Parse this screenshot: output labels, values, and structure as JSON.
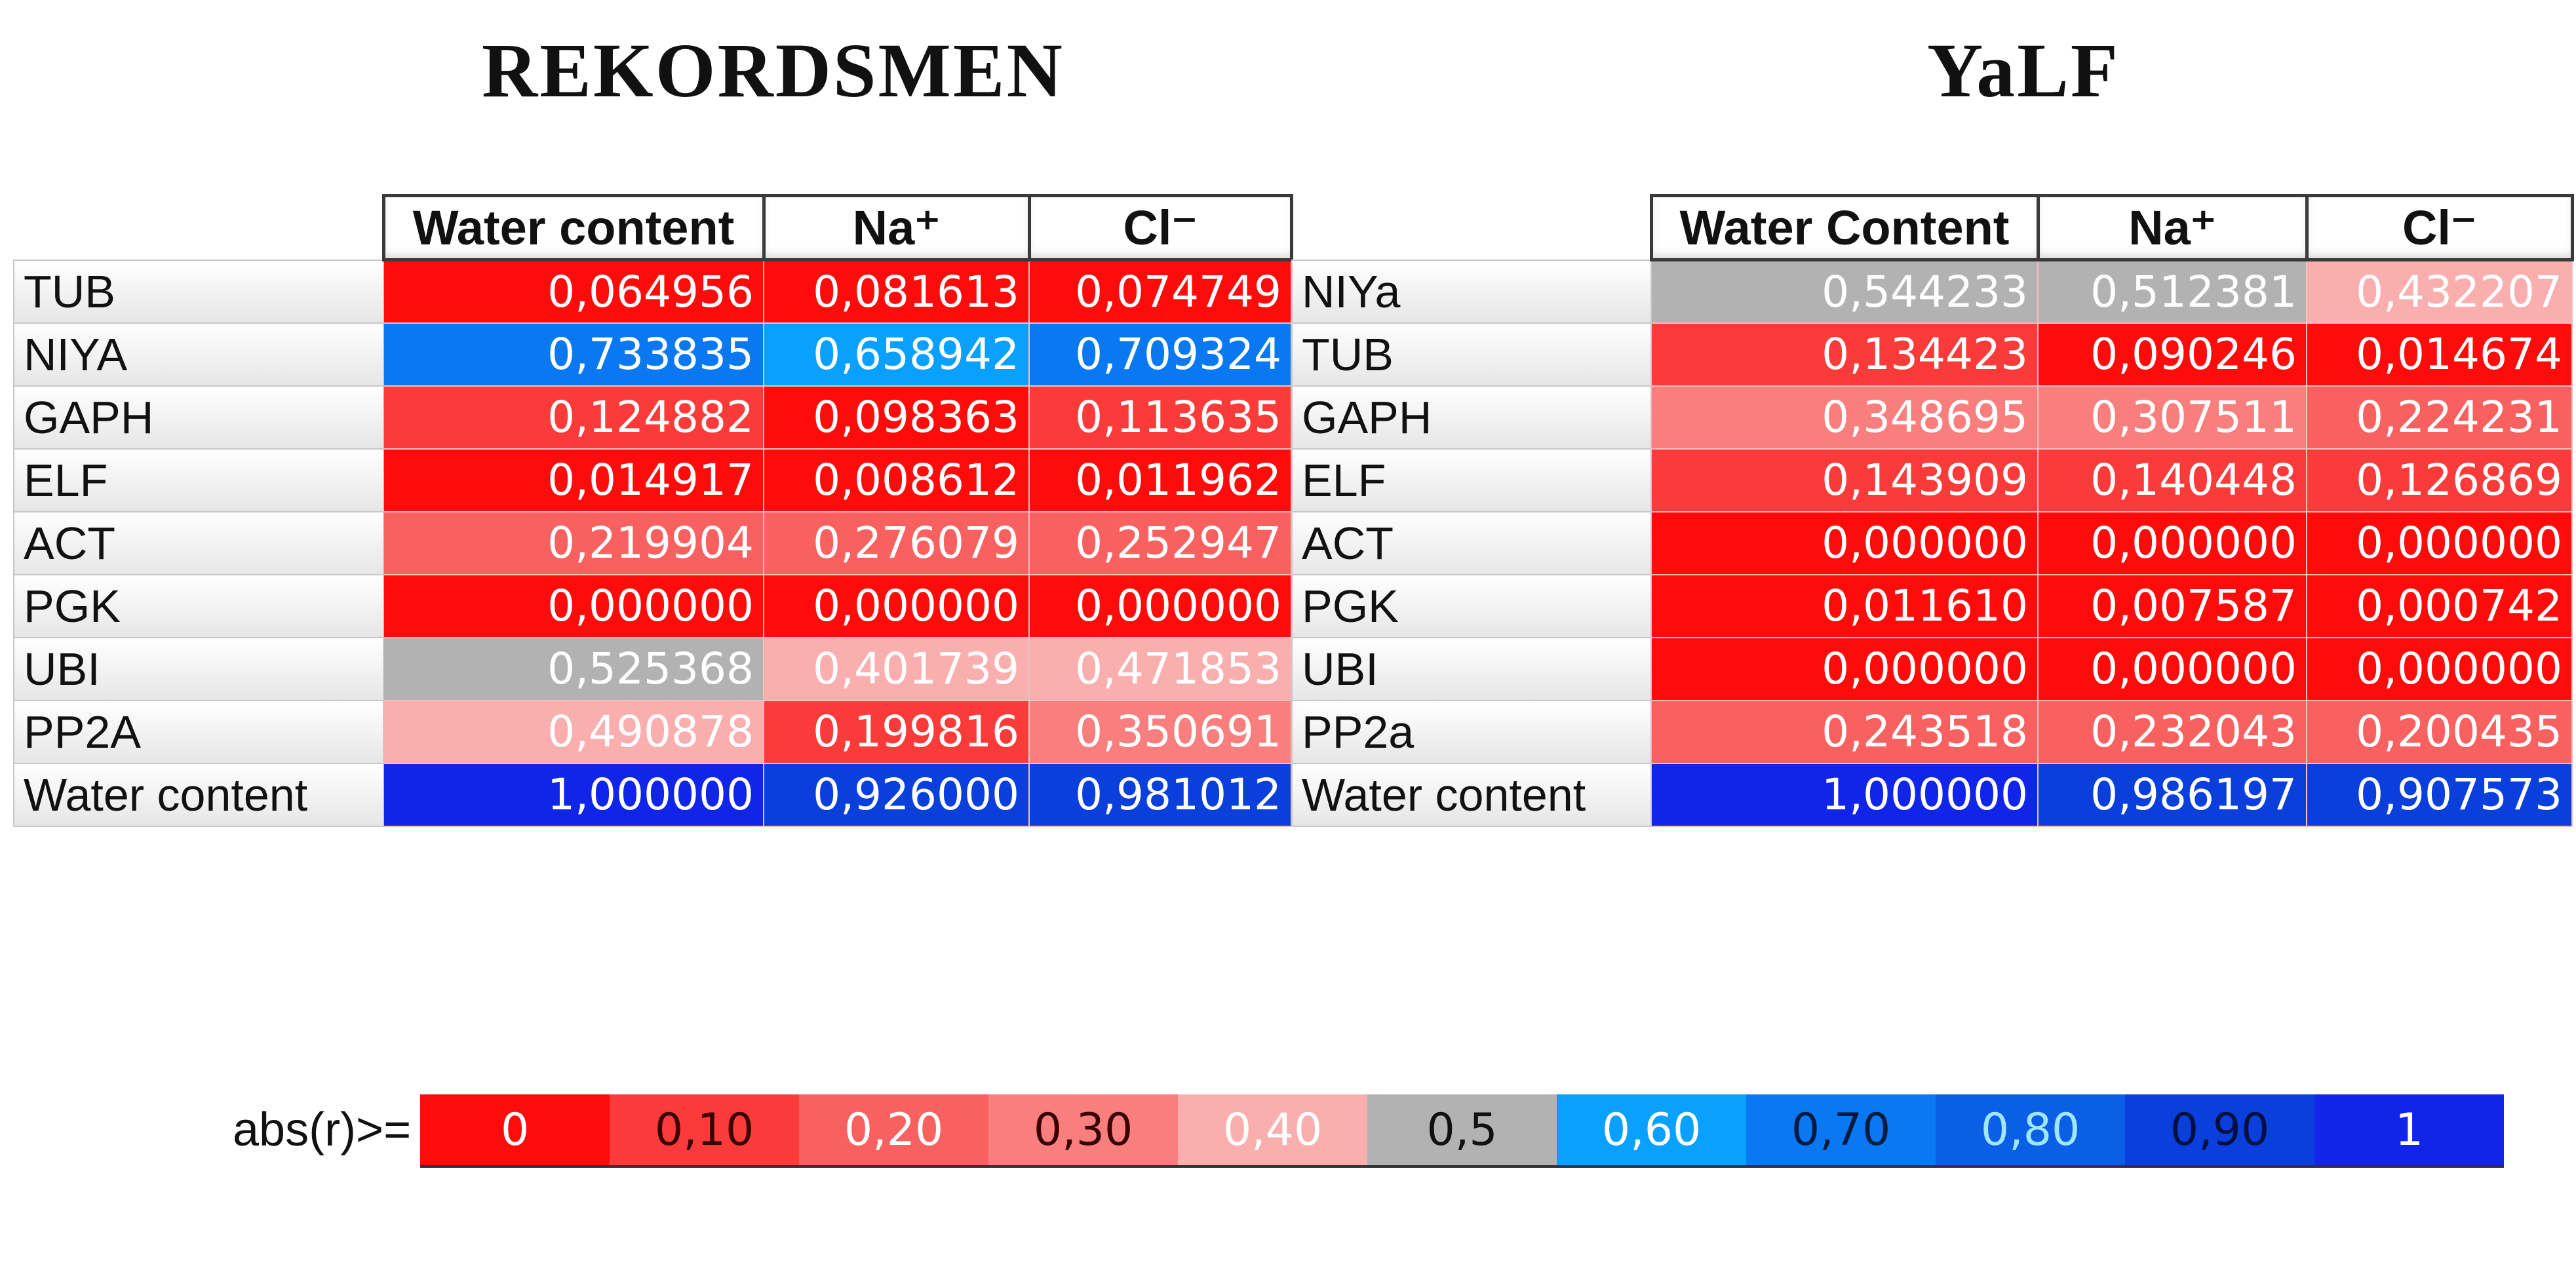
{
  "chart_data": [
    {
      "type": "table",
      "title": "REKORDSMEN",
      "columns": [
        "Water content",
        "Na⁺",
        "Cl⁻"
      ],
      "rows": [
        {
          "label": "TUB",
          "values": [
            "0,064956",
            "0,081613",
            "0,074749"
          ]
        },
        {
          "label": "NIYA",
          "values": [
            "0,733835",
            "0,658942",
            "0,709324"
          ]
        },
        {
          "label": "GAPH",
          "values": [
            "0,124882",
            "0,098363",
            "0,113635"
          ]
        },
        {
          "label": "ELF",
          "values": [
            "0,014917",
            "0,008612",
            "0,011962"
          ]
        },
        {
          "label": "ACT",
          "values": [
            "0,219904",
            "0,276079",
            "0,252947"
          ]
        },
        {
          "label": "PGK",
          "values": [
            "0,000000",
            "0,000000",
            "0,000000"
          ]
        },
        {
          "label": "UBI",
          "values": [
            "0,525368",
            "0,401739",
            "0,471853"
          ]
        },
        {
          "label": "PP2A",
          "values": [
            "0,490878",
            "0,199816",
            "0,350691"
          ]
        },
        {
          "label": "Water content",
          "values": [
            "1,000000",
            "0,926000",
            "0,981012"
          ]
        }
      ]
    },
    {
      "type": "table",
      "title": "YaLF",
      "columns": [
        "Water Content",
        "Na⁺",
        "Cl⁻"
      ],
      "rows": [
        {
          "label": "NIYa",
          "values": [
            "0,544233",
            "0,512381",
            "0,432207"
          ]
        },
        {
          "label": "TUB",
          "values": [
            "0,134423",
            "0,090246",
            "0,014674"
          ]
        },
        {
          "label": "GAPH",
          "values": [
            "0,348695",
            "0,307511",
            "0,224231"
          ]
        },
        {
          "label": "ELF",
          "values": [
            "0,143909",
            "0,140448",
            "0,126869"
          ]
        },
        {
          "label": "ACT",
          "values": [
            "0,000000",
            "0,000000",
            "0,000000"
          ]
        },
        {
          "label": "PGK",
          "values": [
            "0,011610",
            "0,007587",
            "0,000742"
          ]
        },
        {
          "label": "UBI",
          "values": [
            "0,000000",
            "0,000000",
            "0,000000"
          ]
        },
        {
          "label": "PP2a",
          "values": [
            "0,243518",
            "0,232043",
            "0,200435"
          ]
        },
        {
          "label": "Water content",
          "values": [
            "1,000000",
            "0,986197",
            "0,907573"
          ]
        }
      ]
    }
  ],
  "legend": {
    "label": "abs(r)>=",
    "items": [
      {
        "text": "0",
        "color": "#ff0b0b",
        "text_color": "#ffffff"
      },
      {
        "text": "0,10",
        "color": "#fb3a3a",
        "text_color": "#3a0000"
      },
      {
        "text": "0,20",
        "color": "#f96161",
        "text_color": "#ffffff"
      },
      {
        "text": "0,30",
        "color": "#f97e7e",
        "text_color": "#3a0000"
      },
      {
        "text": "0,40",
        "color": "#fbaeae",
        "text_color": "#ffffff"
      },
      {
        "text": "0,5",
        "color": "#b2b2b2",
        "text_color": "#111111"
      },
      {
        "text": "0,60",
        "color": "#0aa0ff",
        "text_color": "#ffffff"
      },
      {
        "text": "0,70",
        "color": "#0a78f0",
        "text_color": "#001a40"
      },
      {
        "text": "0,80",
        "color": "#0b5ee6",
        "text_color": "#9fe6ff"
      },
      {
        "text": "0,90",
        "color": "#0a3fdc",
        "text_color": "#001040"
      },
      {
        "text": "1",
        "color": "#1025e8",
        "text_color": "#ffffff"
      }
    ]
  }
}
